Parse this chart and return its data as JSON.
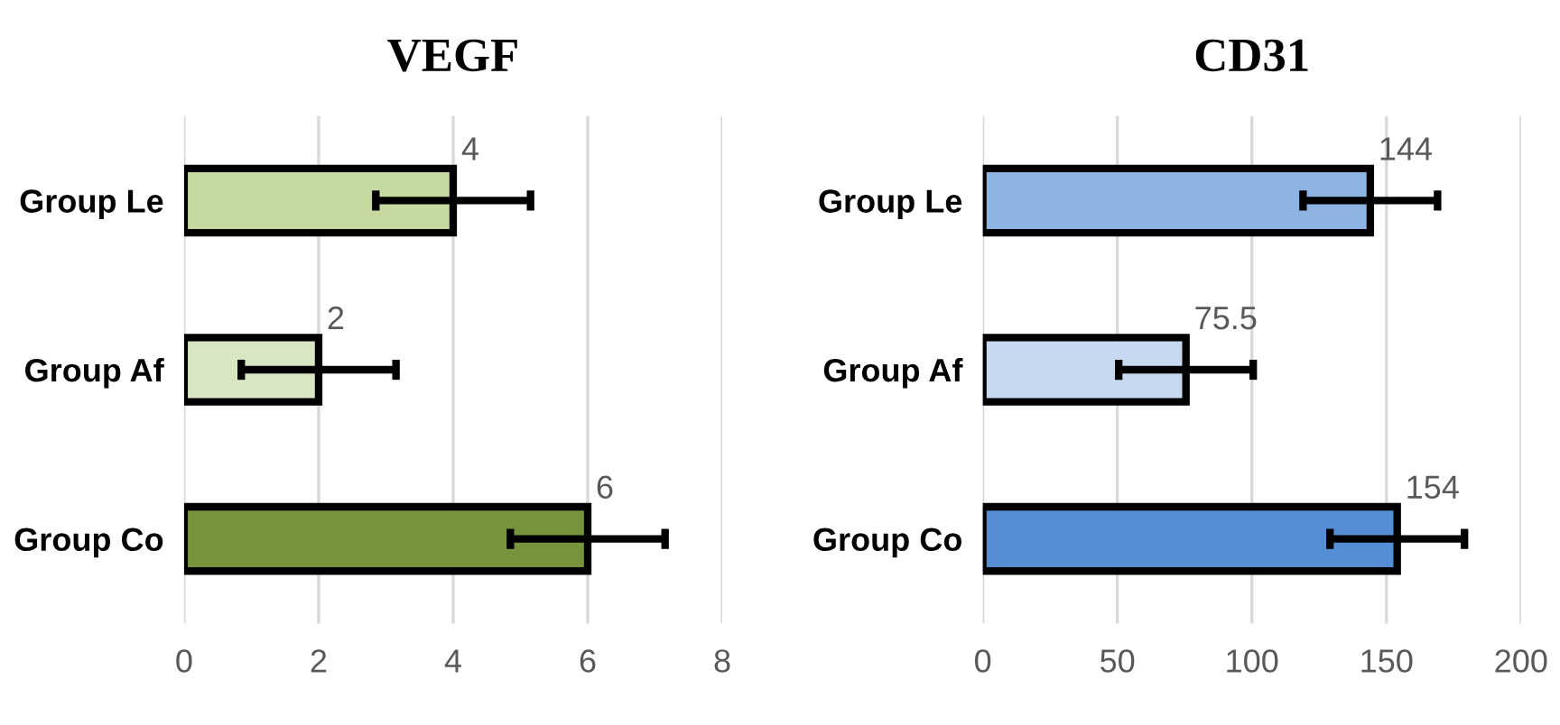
{
  "chart_data": [
    {
      "type": "bar",
      "orientation": "horizontal",
      "title": "VEGF",
      "categories": [
        "Group Le",
        "Group Af",
        "Group Co"
      ],
      "values": [
        4,
        2,
        6
      ],
      "errors": [
        1.15,
        1.15,
        1.15
      ],
      "colors": [
        "#c5d9a0",
        "#d8e6c4",
        "#77933c"
      ],
      "xlim": [
        0,
        8
      ],
      "xticks": [
        0,
        2,
        4,
        6,
        8
      ],
      "grid": "x",
      "data_labels": true
    },
    {
      "type": "bar",
      "orientation": "horizontal",
      "title": "CD31",
      "categories": [
        "Group Le",
        "Group Af",
        "Group Co"
      ],
      "values": [
        144,
        75.5,
        154
      ],
      "errors": [
        25,
        25,
        25
      ],
      "colors": [
        "#8eb4e3",
        "#c6d9f1",
        "#558ed5"
      ],
      "xlim": [
        0,
        200
      ],
      "xticks": [
        0,
        50,
        100,
        150,
        200
      ],
      "grid": "x",
      "data_labels": true
    }
  ]
}
